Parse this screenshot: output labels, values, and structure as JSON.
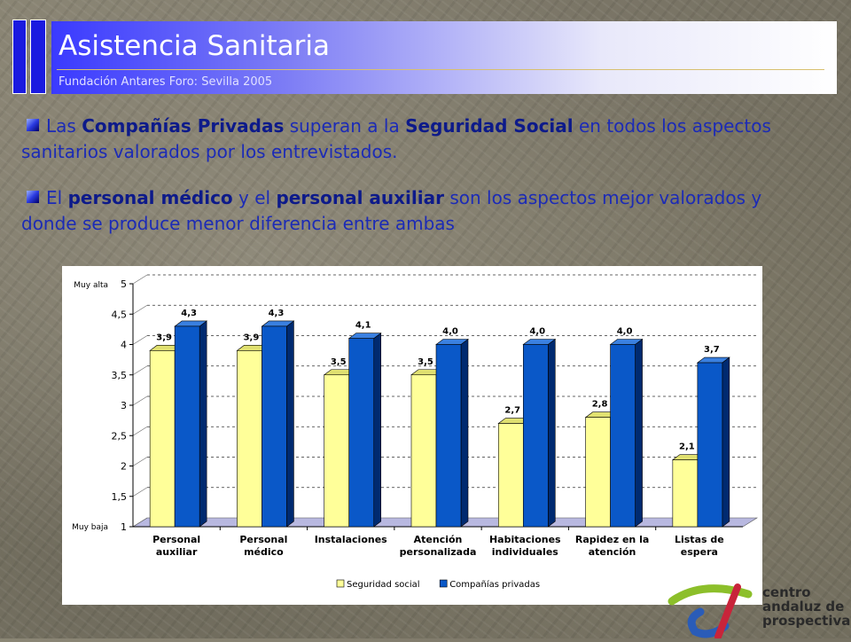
{
  "header": {
    "title": "Asistencia Sanitaria",
    "subtitle": "Fundación Antares Foro: Sevilla 2005"
  },
  "paragraphs": [
    {
      "segments": [
        {
          "text": "Las ",
          "bold": false
        },
        {
          "text": "Compañías Privadas",
          "bold": true
        },
        {
          "text": " superan a la ",
          "bold": false
        },
        {
          "text": "Seguridad Social",
          "bold": true
        },
        {
          "text": " en todos los aspectos sanitarios valorados por los entrevistados.",
          "bold": false
        }
      ]
    },
    {
      "segments": [
        {
          "text": "El ",
          "bold": false
        },
        {
          "text": "personal médico",
          "bold": true
        },
        {
          "text": " y el ",
          "bold": false
        },
        {
          "text": "personal auxiliar",
          "bold": true
        },
        {
          "text": " son los aspectos mejor valorados y donde se produce menor diferencia entre ambas",
          "bold": false
        }
      ]
    }
  ],
  "chart_data": {
    "type": "bar",
    "categories": [
      [
        "Personal",
        "auxiliar"
      ],
      [
        "Personal",
        "médico"
      ],
      [
        "Instalaciones"
      ],
      [
        "Atención",
        "personalizada"
      ],
      [
        "Habitaciones",
        "individuales"
      ],
      [
        "Rapidez en la",
        "atención"
      ],
      [
        "Listas de",
        "espera"
      ]
    ],
    "series": [
      {
        "name": "Seguridad social",
        "values": [
          3.9,
          3.9,
          3.5,
          3.5,
          2.7,
          2.8,
          2.1
        ],
        "labels": [
          "3,9",
          "3,9",
          "3,5",
          "3,5",
          "2,7",
          "2,8",
          "2,1"
        ],
        "color": "#ffff99"
      },
      {
        "name": "Compañías privadas",
        "values": [
          4.3,
          4.3,
          4.1,
          4.0,
          4.0,
          4.0,
          3.7
        ],
        "labels": [
          "4,3",
          "4,3",
          "4,1",
          "4,0",
          "4,0",
          "4,0",
          "3,7"
        ],
        "color": "#0a58c8"
      }
    ],
    "ylim": [
      1,
      5
    ],
    "yticks": [
      "1",
      "1,5",
      "2",
      "2,5",
      "3",
      "3,5",
      "4",
      "4,5",
      "5"
    ],
    "ytick_values": [
      1,
      1.5,
      2,
      2.5,
      3,
      3.5,
      4,
      4.5,
      5
    ],
    "y_annotations": {
      "top": "Muy alta",
      "bottom": "Muy baja"
    },
    "grid": true,
    "legend": "bottom"
  },
  "logo": {
    "lines": [
      "centro",
      "andaluz de",
      "prospectiva"
    ]
  }
}
